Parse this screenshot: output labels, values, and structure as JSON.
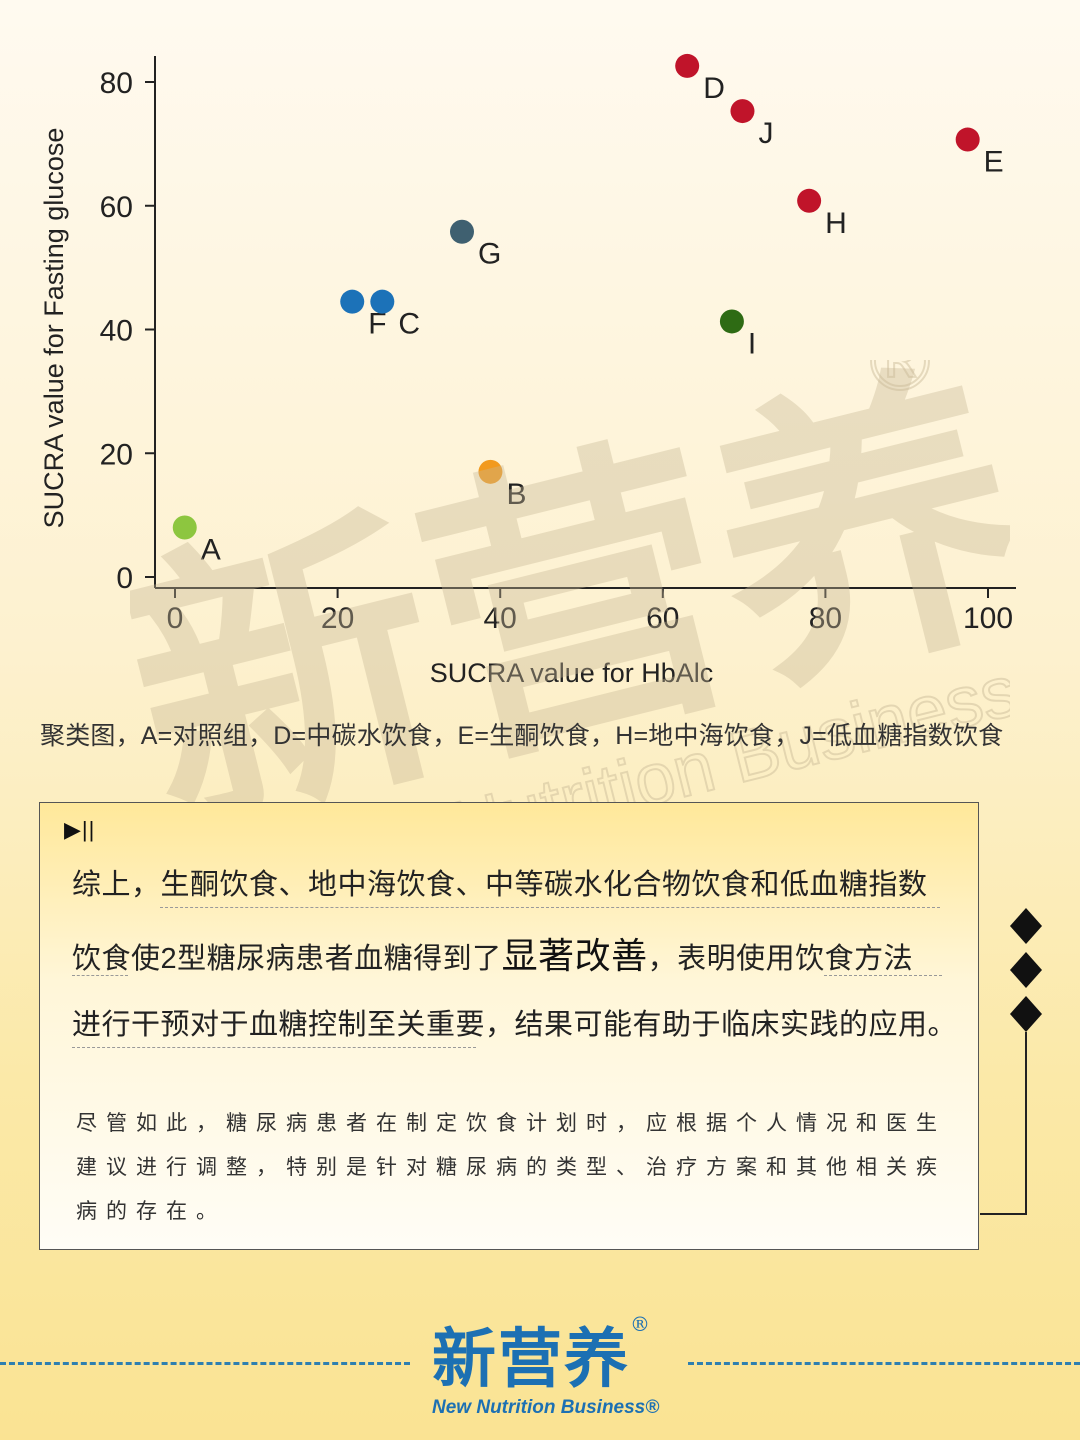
{
  "chart_data": {
    "type": "scatter",
    "xlabel": "SUCRA value for HbAlc",
    "ylabel": "SUCRA value for Fasting glucose",
    "xlim": [
      0,
      100
    ],
    "ylim": [
      0,
      80
    ],
    "xticks": [
      0,
      20,
      40,
      60,
      80,
      100
    ],
    "yticks": [
      0,
      20,
      40,
      60,
      80
    ],
    "grid": false,
    "points": [
      {
        "label": "A",
        "x": 1.2,
        "y": 8,
        "color": "#8dc63f"
      },
      {
        "label": "B",
        "x": 38.8,
        "y": 17,
        "color": "#f29a1e"
      },
      {
        "label": "F",
        "x": 21.8,
        "y": 44.5,
        "color": "#1c72b8"
      },
      {
        "label": "C",
        "x": 25.5,
        "y": 44.5,
        "color": "#1c72b8"
      },
      {
        "label": "G",
        "x": 35.3,
        "y": 55.8,
        "color": "#3f6070"
      },
      {
        "label": "I",
        "x": 68.5,
        "y": 41.3,
        "color": "#2e6b14"
      },
      {
        "label": "D",
        "x": 63,
        "y": 82.6,
        "color": "#c0142a"
      },
      {
        "label": "J",
        "x": 69.8,
        "y": 75.3,
        "color": "#c0142a"
      },
      {
        "label": "H",
        "x": 78,
        "y": 60.8,
        "color": "#c0142a"
      },
      {
        "label": "E",
        "x": 97.5,
        "y": 70.7,
        "color": "#c0142a"
      }
    ]
  },
  "caption": "聚类图，A=对照组，D=中碳水饮食，E=生酮饮食，H=地中海饮食，J=低血糖指数饮食",
  "card": {
    "play_icon_text": "▶||",
    "line1": "综上，生酮饮食、地中海饮食、中等碳水化合物饮食和低血糖指数",
    "line2_a": "饮食使2型糖尿病患者血糖得到了",
    "line2_big": "显著改善",
    "line2_b": "，表明使用饮食方法",
    "line3": "进行干预对于血糖控制至关重要，结果可能有助于临床实践的应用。",
    "note": "尽管如此，糖尿病患者在制定饮食计划时，应根据个人情况和医生建议进行调整，特别是针对糖尿病的类型、治疗方案和其他相关疾病的存在。"
  },
  "footer": {
    "logo_cn": "新营养",
    "logo_mark": "®",
    "logo_en": "New Nutrition Business®"
  },
  "watermark": {
    "text_cn": "新营养",
    "text_en": "New Nutrition Business",
    "mark": "®",
    "color": "#c8b896"
  },
  "colors": {
    "accent_blue": "#1c70b3",
    "axis": "#222222"
  }
}
